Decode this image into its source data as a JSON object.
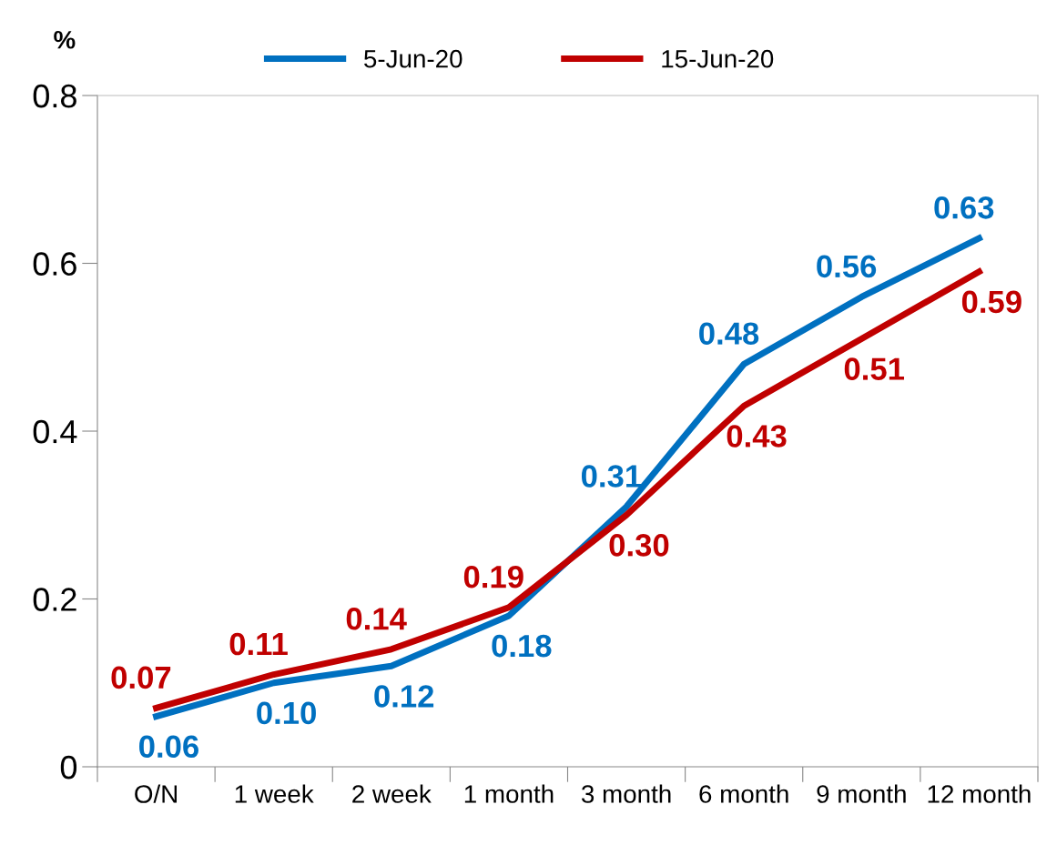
{
  "chart_data": {
    "type": "line",
    "ylabel": "%",
    "categories": [
      "O/N",
      "1 week",
      "2 week",
      "1 month",
      "3 month",
      "6 month",
      "9 month",
      "12 month"
    ],
    "series": [
      {
        "name": "5-Jun-20",
        "color": "#0070c0",
        "values": [
          0.06,
          0.1,
          0.12,
          0.18,
          0.31,
          0.48,
          0.56,
          0.63
        ],
        "value_labels": [
          "0.06",
          "0.10",
          "0.12",
          "0.18",
          "0.31",
          "0.48",
          "0.56",
          "0.63"
        ]
      },
      {
        "name": "15-Jun-20",
        "color": "#c00000",
        "values": [
          0.07,
          0.11,
          0.14,
          0.19,
          0.3,
          0.43,
          0.51,
          0.59
        ],
        "value_labels": [
          "0.07",
          "0.11",
          "0.14",
          "0.19",
          "0.30",
          "0.43",
          "0.51",
          "0.59"
        ]
      }
    ],
    "ylim": [
      0,
      0.8
    ],
    "yticks": [
      {
        "value": 0,
        "label": "0"
      },
      0.2,
      0.4,
      0.6,
      0.8
    ],
    "grid": false,
    "legend": "top",
    "marker": "none",
    "line_style": "solid"
  }
}
